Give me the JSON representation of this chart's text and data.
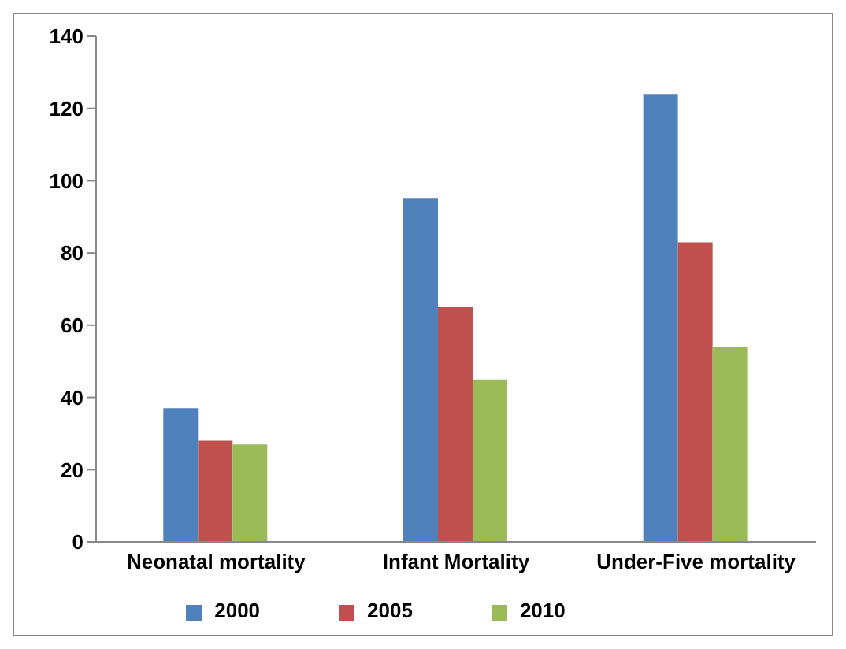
{
  "chart_data": {
    "type": "bar",
    "categories": [
      "Neonatal mortality",
      "Infant Mortality",
      "Under-Five mortality"
    ],
    "series": [
      {
        "name": "2000",
        "color": "#4f81bd",
        "values": [
          37,
          95,
          124
        ]
      },
      {
        "name": "2005",
        "color": "#c0504d",
        "values": [
          28,
          65,
          83
        ]
      },
      {
        "name": "2010",
        "color": "#9bbb59",
        "values": [
          27,
          45,
          54
        ]
      }
    ],
    "ylim": [
      0,
      140
    ],
    "yticks": [
      0,
      20,
      40,
      60,
      80,
      100,
      120,
      140
    ],
    "legend": "bottom"
  }
}
